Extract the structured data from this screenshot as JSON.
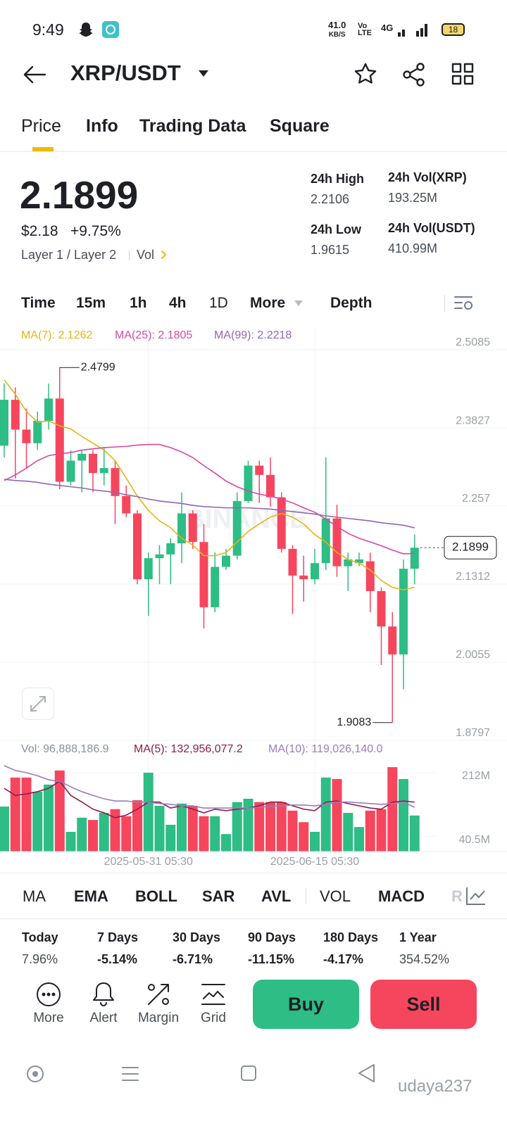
{
  "status_bar": {
    "time": "9:49",
    "speed": "41.0",
    "speed_unit": "KB/S",
    "volte": "Vo",
    "volte_sub": "LTE",
    "network": "4G",
    "battery": "18"
  },
  "header": {
    "pair": "XRP/USDT"
  },
  "tabs": [
    "Price",
    "Info",
    "Trading Data",
    "Square"
  ],
  "summary": {
    "price": "2.1899",
    "fiat": "$2.18",
    "change": "+9.75%",
    "sectors": "Layer 1 / Layer 2",
    "vol_link": "Vol",
    "stats": [
      {
        "label": "24h High",
        "value": "2.2106"
      },
      {
        "label": "24h Vol(XRP)",
        "value": "193.25M"
      },
      {
        "label": "24h Low",
        "value": "1.9615"
      },
      {
        "label": "24h Vol(USDT)",
        "value": "410.99M"
      }
    ]
  },
  "intervals": [
    "Time",
    "15m",
    "1h",
    "4h",
    "1D",
    "More",
    "Depth"
  ],
  "chart": {
    "type": "candlestick",
    "up_color": "#2ebd85",
    "down_color": "#f6465d",
    "ma_legend": [
      "MA(7): 2.1262",
      "MA(25): 2.1805",
      "MA(99): 2.2218"
    ],
    "ma_colors": [
      "#e5b416",
      "#d9489c",
      "#9066b8"
    ],
    "watermark": "BINANCE",
    "ylim": [
      1.8797,
      2.5085
    ],
    "yticks": [
      2.5085,
      2.3827,
      2.257,
      2.1312,
      2.0055,
      1.8797
    ],
    "dates": [
      null,
      null,
      null,
      null,
      null,
      null,
      null,
      null,
      null,
      null,
      null,
      null,
      null,
      "2025-05-31 05:30",
      null,
      null,
      null,
      null,
      null,
      null,
      null,
      null,
      null,
      null,
      null,
      null,
      null,
      null,
      "2025-06-15 05:30",
      null,
      null,
      null,
      null,
      null,
      null,
      null,
      null,
      null
    ],
    "open": [
      2.354,
      2.428,
      2.38,
      2.358,
      2.394,
      2.43,
      2.296,
      2.33,
      2.341,
      2.31,
      2.318,
      2.273,
      2.245,
      2.139,
      2.173,
      2.179,
      2.197,
      2.245,
      2.199,
      2.094,
      2.159,
      2.177,
      2.265,
      2.322,
      2.307,
      2.271,
      2.188,
      2.145,
      2.139,
      2.165,
      2.237,
      2.16,
      2.165,
      2.168,
      2.12,
      2.063,
      2.018,
      2.156
    ],
    "high": [
      2.454,
      2.448,
      2.414,
      2.409,
      2.454,
      2.4799,
      2.347,
      2.347,
      2.347,
      2.352,
      2.33,
      2.29,
      2.25,
      2.182,
      2.194,
      2.205,
      2.279,
      2.25,
      2.228,
      2.182,
      2.188,
      2.279,
      2.33,
      2.33,
      2.335,
      2.279,
      2.194,
      2.177,
      2.188,
      2.335,
      2.259,
      2.182,
      2.182,
      2.182,
      2.126,
      2.086,
      2.171,
      2.211
    ],
    "low": [
      2.335,
      2.301,
      2.318,
      2.347,
      2.38,
      2.284,
      2.29,
      2.279,
      2.279,
      2.29,
      2.228,
      2.239,
      2.131,
      2.08,
      2.131,
      2.131,
      2.165,
      2.188,
      2.06,
      2.086,
      2.154,
      2.171,
      2.262,
      2.262,
      2.256,
      2.182,
      2.083,
      2.103,
      2.131,
      2.154,
      2.143,
      2.12,
      2.16,
      2.086,
      2.001,
      1.9083,
      1.962,
      2.131
    ],
    "close": [
      2.428,
      2.38,
      2.358,
      2.394,
      2.43,
      2.296,
      2.33,
      2.341,
      2.31,
      2.318,
      2.273,
      2.245,
      2.139,
      2.173,
      2.179,
      2.197,
      2.245,
      2.199,
      2.094,
      2.159,
      2.177,
      2.265,
      2.322,
      2.307,
      2.271,
      2.188,
      2.145,
      2.139,
      2.165,
      2.237,
      2.16,
      2.171,
      2.171,
      2.12,
      2.063,
      2.018,
      2.156,
      2.1899
    ],
    "ma7": [
      2.46,
      2.437,
      2.409,
      2.392,
      2.394,
      2.386,
      2.381,
      2.369,
      2.358,
      2.347,
      2.33,
      2.302,
      2.273,
      2.25,
      2.233,
      2.222,
      2.205,
      2.194,
      2.177,
      2.177,
      2.182,
      2.199,
      2.216,
      2.228,
      2.239,
      2.245,
      2.239,
      2.228,
      2.211,
      2.199,
      2.182,
      2.171,
      2.165,
      2.154,
      2.137,
      2.126,
      2.122,
      2.1262
    ],
    "ma25": [
      2.298,
      2.307,
      2.318,
      2.33,
      2.338,
      2.341,
      2.343,
      2.347,
      2.349,
      2.351,
      2.352,
      2.353,
      2.355,
      2.356,
      2.356,
      2.351,
      2.344,
      2.335,
      2.322,
      2.31,
      2.297,
      2.288,
      2.281,
      2.276,
      2.273,
      2.268,
      2.262,
      2.254,
      2.247,
      2.236,
      2.224,
      2.213,
      2.205,
      2.199,
      2.193,
      2.186,
      2.18,
      2.1805
    ],
    "ma99": [
      2.3,
      2.298,
      2.297,
      2.295,
      2.292,
      2.29,
      2.288,
      2.286,
      2.283,
      2.281,
      2.279,
      2.275,
      2.272,
      2.268,
      2.265,
      2.263,
      2.261,
      2.258,
      2.256,
      2.255,
      2.254,
      2.254,
      2.254,
      2.253,
      2.252,
      2.25,
      2.248,
      2.246,
      2.244,
      2.241,
      2.239,
      2.237,
      2.235,
      2.233,
      2.23,
      2.228,
      2.226,
      2.2218
    ],
    "volume": {
      "legend": [
        "Vol: 96,888,186.9",
        "MA(5): 132,956,077.2",
        "MA(10): 119,026,140.0"
      ],
      "ma_colors": [
        "#8c1d4c",
        "#9b7bc0"
      ],
      "ylim": [
        0,
        212000000
      ],
      "yticks": [
        {
          "value": 212000000,
          "label": "212M"
        },
        {
          "value": 40500000,
          "label": "40.5M"
        }
      ],
      "values": [
        121000000.0,
        199000000.0,
        199000000.0,
        161000000.0,
        180000000.0,
        218000000.0,
        53000000.0,
        91000000.0,
        85000000.0,
        104000000.0,
        114000000.0,
        95000000.0,
        138000000.0,
        212000000.0,
        123000000.0,
        72000000.0,
        129000000.0,
        123000000.0,
        95000000.0,
        95000000.0,
        47000000.0,
        133000000.0,
        142000000.0,
        133000000.0,
        133000000.0,
        133000000.0,
        110000000.0,
        79000000.0,
        53000000.0,
        199000000.0,
        195000000.0,
        104000000.0,
        66000000.0,
        110000000.0,
        114000000.0,
        227000000.0,
        195000000.0,
        96888186.9
      ],
      "ma5": [
        170000000.0,
        151000000.0,
        155000000.0,
        161000000.0,
        170000000.0,
        189000000.0,
        151000000.0,
        133000000.0,
        114000000.0,
        104000000.0,
        91000000.0,
        98000000.0,
        114000000.0,
        133000000.0,
        133000000.0,
        117000000.0,
        123000000.0,
        114000000.0,
        104000000.0,
        114000000.0,
        110000000.0,
        114000000.0,
        117000000.0,
        123000000.0,
        133000000.0,
        133000000.0,
        123000000.0,
        114000000.0,
        110000000.0,
        133000000.0,
        136000000.0,
        129000000.0,
        123000000.0,
        117000000.0,
        114000000.0,
        133000000.0,
        136000000.0,
        132956077.2
      ],
      "ma10": [
        231000000.0,
        218000000.0,
        212000000.0,
        204000000.0,
        193000000.0,
        189000000.0,
        174000000.0,
        161000000.0,
        151000000.0,
        142000000.0,
        136000000.0,
        136000000.0,
        133000000.0,
        133000000.0,
        129000000.0,
        127000000.0,
        123000000.0,
        123000000.0,
        117000000.0,
        117000000.0,
        117000000.0,
        117000000.0,
        117000000.0,
        119000000.0,
        121000000.0,
        123000000.0,
        125000000.0,
        125000000.0,
        123000000.0,
        127000000.0,
        133000000.0,
        133000000.0,
        131000000.0,
        129000000.0,
        127000000.0,
        129000000.0,
        133000000.0,
        119026140.0
      ]
    }
  },
  "indicators": [
    "MA",
    "EMA",
    "BOLL",
    "SAR",
    "AVL",
    "VOL",
    "MACD",
    "R"
  ],
  "performance": [
    {
      "label": "Today",
      "value": "7.96%"
    },
    {
      "label": "7 Days",
      "value": "-5.14%"
    },
    {
      "label": "30 Days",
      "value": "-6.71%"
    },
    {
      "label": "90 Days",
      "value": "-11.15%"
    },
    {
      "label": "180 Days",
      "value": "-4.17%"
    },
    {
      "label": "1 Year",
      "value": "354.52%"
    }
  ],
  "actions": [
    "More",
    "Alert",
    "Margin",
    "Grid"
  ],
  "trade": {
    "buy": "Buy",
    "sell": "Sell"
  },
  "watermark": "udaya237"
}
